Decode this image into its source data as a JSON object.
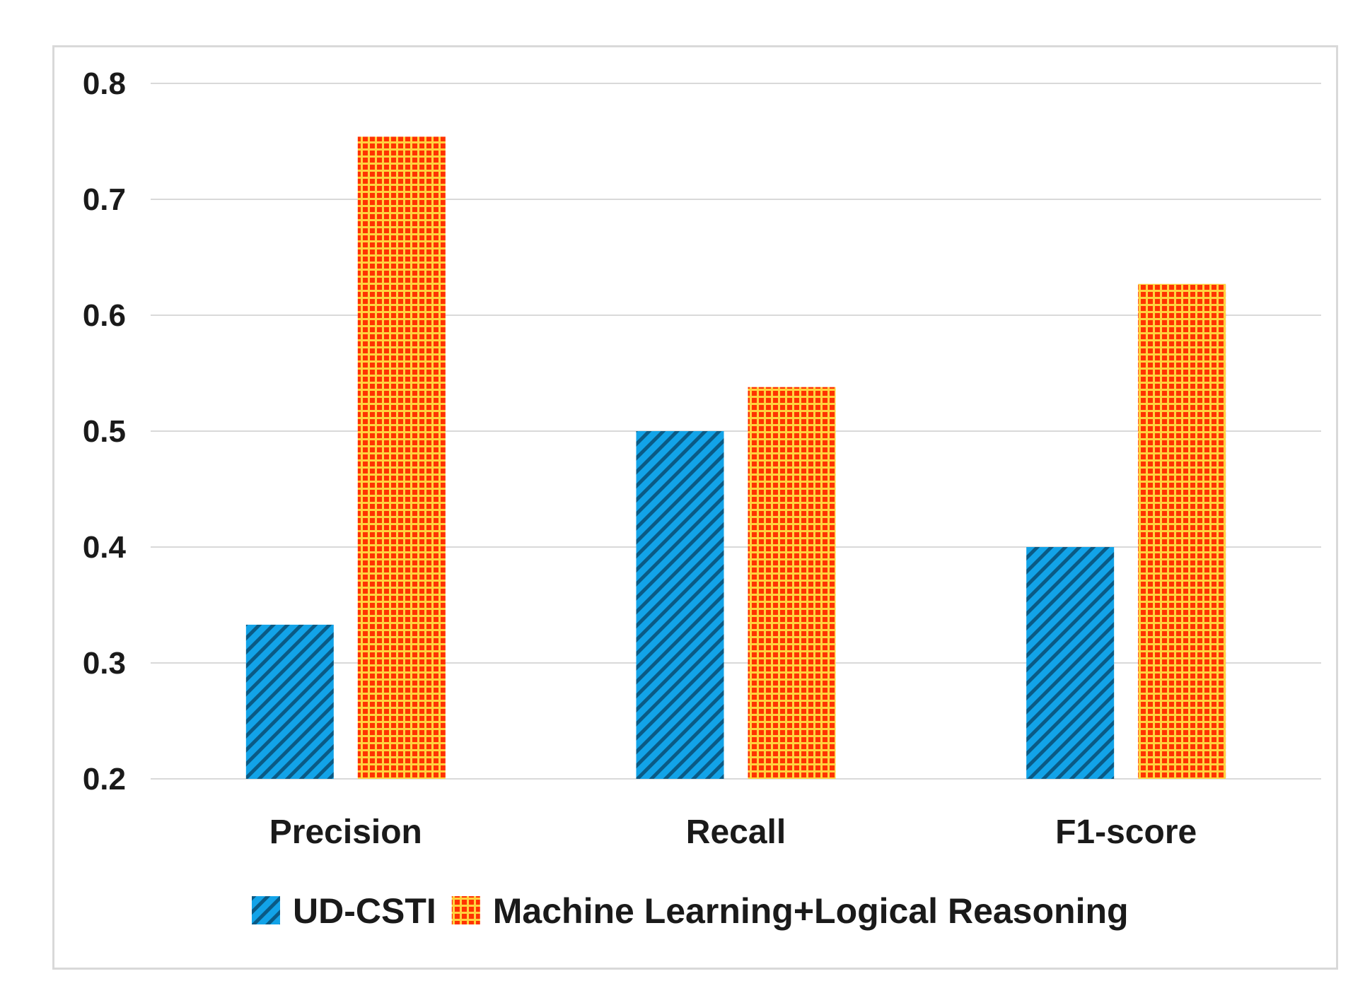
{
  "chart_data": {
    "type": "bar",
    "title": "",
    "xlabel": "",
    "ylabel": "",
    "categories": [
      "Precision",
      "Recall",
      "F1-score"
    ],
    "series": [
      {
        "name": "UD-CSTI",
        "values": [
          0.333,
          0.5,
          0.4
        ],
        "color": "#12a3e8",
        "pattern": "diagonal-stripes"
      },
      {
        "name": "Machine Learning+Logical Reasoning",
        "values": [
          0.754,
          0.538,
          0.627
        ],
        "color": "#ff3300",
        "pattern": "grid"
      }
    ],
    "ylim": [
      0.2,
      0.8
    ],
    "yticks": [
      "0.2",
      "0.3",
      "0.4",
      "0.5",
      "0.6",
      "0.7",
      "0.8"
    ],
    "grid": true,
    "legend": "bottom-center"
  }
}
